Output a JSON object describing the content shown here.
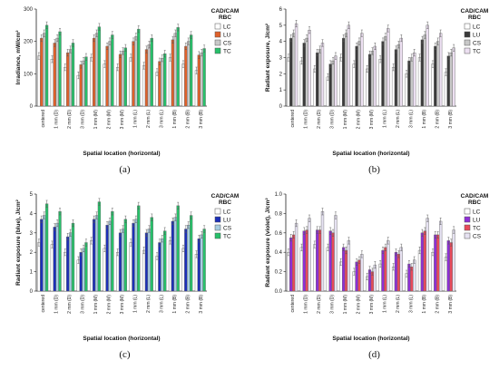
{
  "chart_data": [
    {
      "id": "a",
      "type": "bar",
      "caption": "(a)",
      "xlabel": "Spatial location (horizontal)",
      "ylabel": "Irradiance, mW/cm²",
      "ylim": [
        0,
        300
      ],
      "yticks": [
        0,
        100,
        200,
        300
      ],
      "grid": false,
      "legend_title_1": "CAD/CAM",
      "legend_title_2": "RBC",
      "legend_position": "top-right",
      "categories": [
        "centered",
        "1 mm (D)",
        "2 mm (D)",
        "3 mm (D)",
        "1 mm (M)",
        "2 mm (M)",
        "3 mm (M)",
        "1 mm (L)",
        "2 mm (L)",
        "3 mm (L)",
        "1 mm (B)",
        "2 mm (B)",
        "3 mm (B)"
      ],
      "series": [
        {
          "name": "LC",
          "color": "#ffffff",
          "values": [
            155,
            145,
            120,
            95,
            150,
            130,
            120,
            150,
            125,
            105,
            150,
            130,
            110
          ]
        },
        {
          "name": "LU",
          "color": "#e0612b",
          "values": [
            210,
            195,
            165,
            128,
            210,
            185,
            160,
            200,
            175,
            138,
            205,
            185,
            158
          ]
        },
        {
          "name": "CS",
          "color": "#c8c8c8",
          "values": [
            225,
            210,
            175,
            140,
            225,
            200,
            170,
            215,
            190,
            148,
            225,
            200,
            165
          ]
        },
        {
          "name": "TC",
          "color": "#27c06a",
          "values": [
            250,
            230,
            195,
            152,
            245,
            220,
            180,
            238,
            210,
            162,
            243,
            220,
            178
          ]
        }
      ]
    },
    {
      "id": "b",
      "type": "bar",
      "caption": "(b)",
      "xlabel": "Spatial location (horizontal)",
      "ylabel": "Radiant exposure, J/cm²",
      "ylim": [
        0,
        6
      ],
      "yticks": [
        0,
        1,
        2,
        3,
        4,
        5,
        6
      ],
      "grid": false,
      "legend_title_1": "CAD/CAM",
      "legend_title_2": "RBC",
      "legend_position": "top-right",
      "categories": [
        "centered",
        "1 mm (D)",
        "2 mm (D)",
        "3 mm (D)",
        "1 mm (M)",
        "2 mm (M)",
        "3 mm (M)",
        "1 mm (L)",
        "2 mm (L)",
        "3 mm (L)",
        "1 mm (B)",
        "2 mm (B)",
        "3 mm (B)"
      ],
      "series": [
        {
          "name": "LC",
          "color": "#ffffff",
          "values": [
            3.0,
            2.8,
            2.3,
            1.8,
            3.0,
            2.6,
            2.3,
            2.9,
            2.4,
            2.0,
            3.0,
            2.6,
            2.1
          ]
        },
        {
          "name": "LU",
          "color": "#3a3a3a",
          "values": [
            4.2,
            3.9,
            3.3,
            2.6,
            4.2,
            3.7,
            3.2,
            4.0,
            3.5,
            2.8,
            4.1,
            3.7,
            3.1
          ]
        },
        {
          "name": "CS",
          "color": "#c8c8c8",
          "values": [
            4.5,
            4.2,
            3.5,
            2.8,
            4.5,
            4.0,
            3.4,
            4.3,
            3.8,
            3.0,
            4.4,
            4.0,
            3.3
          ]
        },
        {
          "name": "TC",
          "color": "#ede0f2",
          "values": [
            5.1,
            4.7,
            3.9,
            3.1,
            5.0,
            4.5,
            3.7,
            4.8,
            4.2,
            3.3,
            5.0,
            4.5,
            3.6
          ]
        }
      ]
    },
    {
      "id": "c",
      "type": "bar",
      "caption": "(c)",
      "xlabel": "Spatial location (horizontal)",
      "ylabel": "Radiant exposure (blue), J/cm²",
      "ylim": [
        0,
        5
      ],
      "yticks": [
        0,
        1,
        2,
        3,
        4,
        5
      ],
      "grid": false,
      "legend_title_1": "CAD/CAM",
      "legend_title_2": "RBC",
      "legend_position": "top-right",
      "categories": [
        "centered",
        "1 mm (D)",
        "2 mm (D)",
        "3 mm (D)",
        "1 mm (M)",
        "2 mm (M)",
        "3 mm (M)",
        "1 mm (L)",
        "2 mm (L)",
        "3 mm (L)",
        "1 mm (B)",
        "2 mm (B)",
        "3 mm (B)"
      ],
      "series": [
        {
          "name": "LC",
          "color": "#ffffff",
          "values": [
            2.5,
            2.4,
            2.0,
            1.6,
            2.6,
            2.2,
            2.0,
            2.5,
            2.1,
            1.8,
            2.6,
            2.2,
            1.9
          ]
        },
        {
          "name": "LU",
          "color": "#1c2fb8",
          "values": [
            3.7,
            3.3,
            2.8,
            2.0,
            3.7,
            3.4,
            3.0,
            3.5,
            3.0,
            2.5,
            3.6,
            3.2,
            2.7
          ]
        },
        {
          "name": "CS",
          "color": "#a7cde0",
          "values": [
            3.9,
            3.5,
            3.0,
            2.2,
            3.9,
            3.6,
            3.2,
            3.7,
            3.2,
            2.7,
            3.8,
            3.4,
            2.9
          ]
        },
        {
          "name": "TC",
          "color": "#27c06a",
          "values": [
            4.5,
            4.1,
            3.5,
            2.5,
            4.6,
            4.1,
            3.7,
            4.4,
            3.8,
            3.1,
            4.4,
            3.9,
            3.2
          ]
        }
      ]
    },
    {
      "id": "d",
      "type": "bar",
      "caption": "(d)",
      "xlabel": "Spatial location (horizontal)",
      "ylabel": "Radiant exposure (violet), J/cm²",
      "ylim": [
        0,
        1.0
      ],
      "yticks": [
        0.0,
        0.2,
        0.4,
        0.6,
        0.8,
        1.0
      ],
      "ytick_decimals": 1,
      "grid": false,
      "legend_title_1": "CAD/CAM",
      "legend_title_2": "RBC",
      "legend_position": "top-right",
      "categories": [
        "centered",
        "1 mm (D)",
        "2 mm (D)",
        "3 mm (D)",
        "1 mm (M)",
        "2 mm (M)",
        "3 mm (M)",
        "1 mm (L)",
        "2 mm (L)",
        "3 mm (L)",
        "1 mm (B)",
        "2 mm (B)",
        "3 mm (B)"
      ],
      "series": [
        {
          "name": "LC",
          "color": "#ffffff",
          "values": [
            0.4,
            0.45,
            0.48,
            0.45,
            0.3,
            0.2,
            0.15,
            0.28,
            0.25,
            0.18,
            0.42,
            0.4,
            0.35
          ]
        },
        {
          "name": "LU",
          "color": "#8e2fd6",
          "values": [
            0.55,
            0.62,
            0.63,
            0.62,
            0.45,
            0.3,
            0.22,
            0.42,
            0.4,
            0.28,
            0.6,
            0.58,
            0.52
          ]
        },
        {
          "name": "TC",
          "color": "#e84a5a",
          "values": [
            0.58,
            0.63,
            0.63,
            0.6,
            0.42,
            0.32,
            0.2,
            0.45,
            0.38,
            0.25,
            0.62,
            0.58,
            0.5
          ]
        },
        {
          "name": "CS",
          "color": "#e6e2f2",
          "values": [
            0.7,
            0.75,
            0.82,
            0.78,
            0.52,
            0.38,
            0.27,
            0.52,
            0.45,
            0.32,
            0.75,
            0.72,
            0.63
          ]
        }
      ]
    }
  ]
}
